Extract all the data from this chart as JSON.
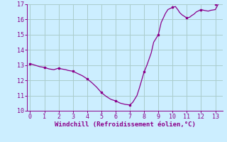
{
  "x": [
    0,
    0.33,
    0.67,
    1,
    1.33,
    1.67,
    2,
    2.2,
    2.5,
    2.67,
    3,
    3.33,
    3.67,
    4,
    4.33,
    4.67,
    5,
    5.33,
    5.67,
    6,
    6.33,
    6.67,
    7,
    7.2,
    7.5,
    7.67,
    8,
    8.2,
    8.5,
    8.67,
    9,
    9.2,
    9.5,
    9.67,
    10,
    10.2,
    10.4,
    10.5,
    10.67,
    11,
    11.2,
    11.33,
    11.5,
    11.67,
    12,
    12.2,
    12.5,
    12.67,
    13,
    13.2
  ],
  "y": [
    13.1,
    13.0,
    12.9,
    12.85,
    12.75,
    12.7,
    12.8,
    12.75,
    12.7,
    12.65,
    12.6,
    12.45,
    12.3,
    12.1,
    11.85,
    11.55,
    11.2,
    10.95,
    10.75,
    10.65,
    10.5,
    10.42,
    10.38,
    10.55,
    11.0,
    11.5,
    12.55,
    13.0,
    13.8,
    14.5,
    15.0,
    15.8,
    16.4,
    16.65,
    16.8,
    16.85,
    16.6,
    16.45,
    16.3,
    16.1,
    16.15,
    16.25,
    16.35,
    16.5,
    16.65,
    16.6,
    16.55,
    16.6,
    16.65,
    17.0
  ],
  "marker_x": [
    0,
    1,
    2,
    3,
    4,
    5,
    6,
    7,
    8,
    9,
    10,
    11,
    12,
    13
  ],
  "marker_y": [
    13.1,
    12.85,
    12.8,
    12.6,
    12.1,
    11.2,
    10.65,
    10.38,
    12.55,
    15.0,
    16.8,
    16.1,
    16.65,
    17.0
  ],
  "line_color": "#8B008B",
  "marker_color": "#8B008B",
  "bg_color": "#cceeff",
  "grid_color": "#aacccc",
  "xlabel": "Windchill (Refroidissement éolien,°C)",
  "xlabel_color": "#8B008B",
  "tick_color": "#8B008B",
  "spine_color": "#8B008B",
  "xlim": [
    -0.2,
    13.5
  ],
  "ylim": [
    10,
    17
  ],
  "xticks": [
    0,
    1,
    2,
    3,
    4,
    5,
    6,
    7,
    8,
    9,
    10,
    11,
    12,
    13
  ],
  "yticks": [
    10,
    11,
    12,
    13,
    14,
    15,
    16,
    17
  ],
  "figsize": [
    3.2,
    2.0
  ],
  "dpi": 100
}
